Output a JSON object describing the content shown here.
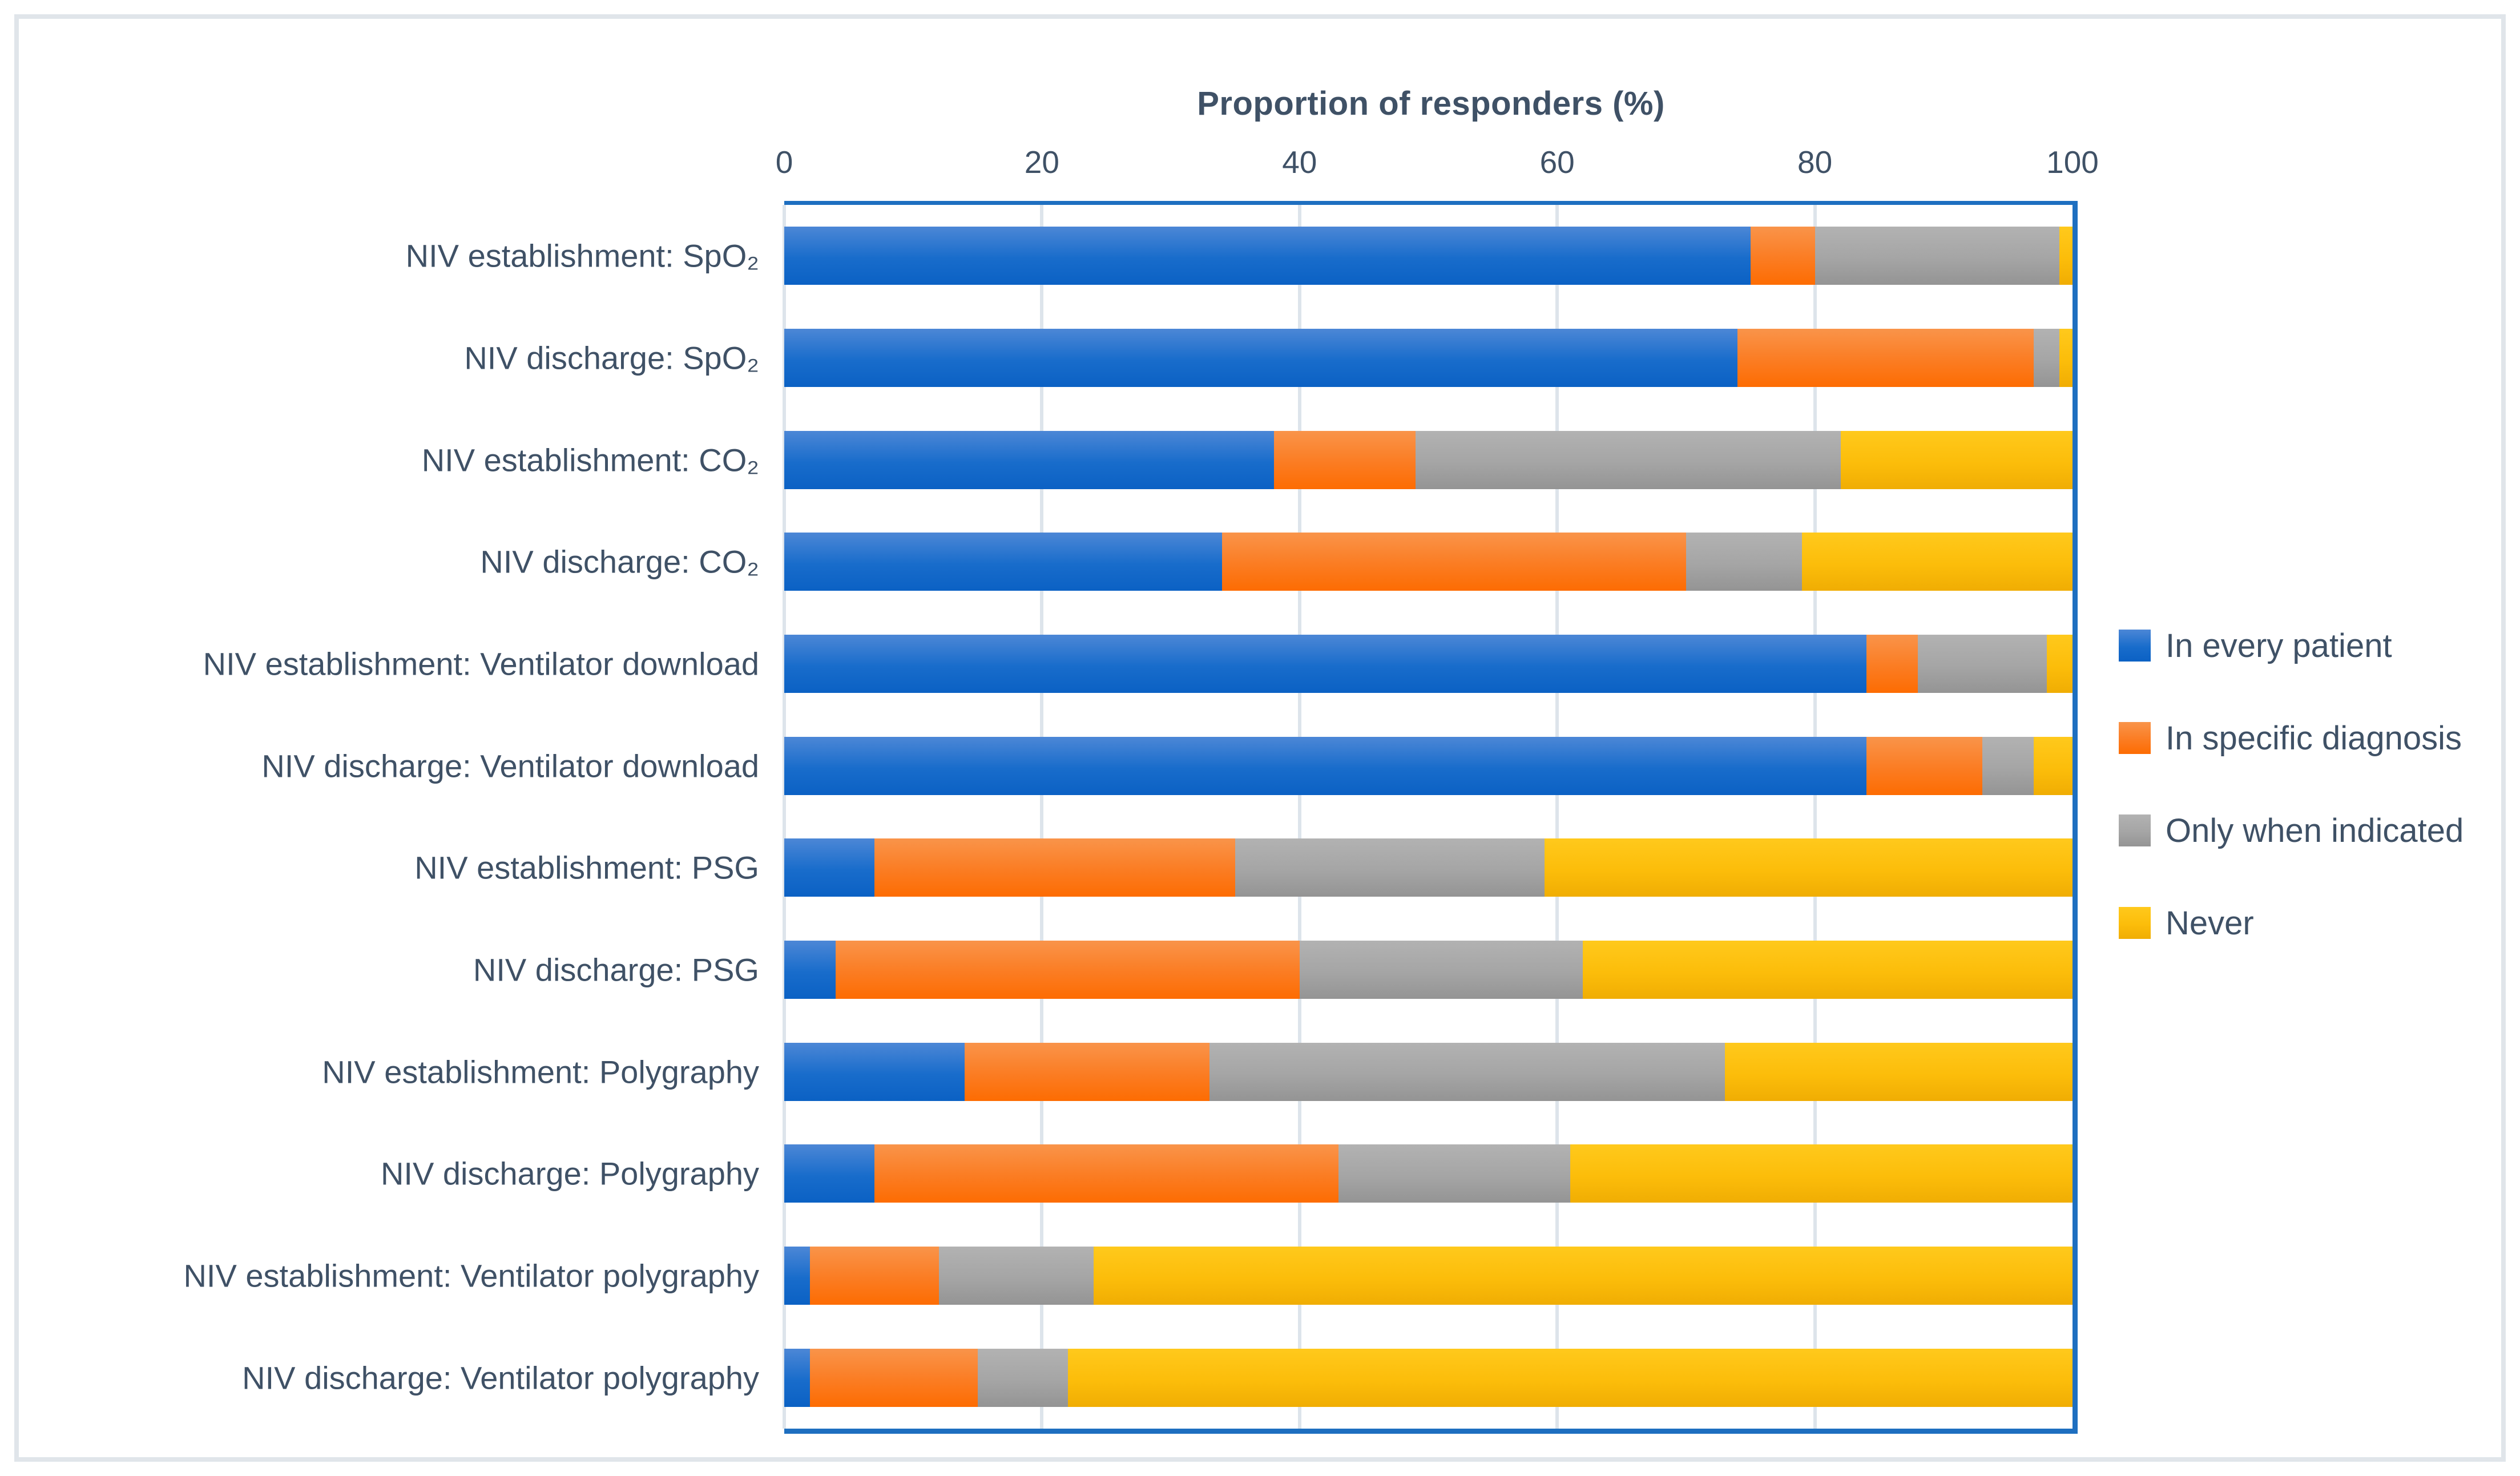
{
  "figure": {
    "background": "#ffffff",
    "border_color": "#e0e5ea"
  },
  "chart_data": {
    "type": "bar",
    "orientation": "horizontal",
    "stacked": true,
    "title": "Proportion of responders (%)",
    "x_axis": {
      "position": "top",
      "range": [
        0,
        100
      ],
      "ticks": [
        0,
        20,
        40,
        60,
        80,
        100
      ],
      "gridlines": "vertical, every 20"
    },
    "legend_position": "right",
    "categories": [
      "NIV establishment: SpO₂",
      "NIV discharge: SpO₂",
      "NIV establishment: CO₂",
      "NIV discharge: CO₂",
      "NIV establishment: Ventilator download",
      "NIV discharge: Ventilator download",
      "NIV establishment: PSG",
      "NIV discharge: PSG",
      "NIV establishment: Polygraphy",
      "NIV discharge: Polygraphy",
      "NIV establishment: Ventilator polygraphy",
      "NIV discharge: Ventilator polygraphy"
    ],
    "series": [
      {
        "name": "In every patient",
        "color": "#1467c8",
        "gradient": [
          "#4c87d6",
          "#0b61c4"
        ],
        "values": [
          75,
          74,
          38,
          34,
          84,
          84,
          7,
          4,
          14,
          7,
          2,
          2
        ]
      },
      {
        "name": "In specific diagnosis",
        "color": "#fb7c22",
        "gradient": [
          "#f9944a",
          "#fd6c02"
        ],
        "values": [
          5,
          23,
          11,
          36,
          4,
          9,
          28,
          36,
          19,
          36,
          10,
          13
        ]
      },
      {
        "name": "Only when indicated",
        "color": "#a5a5a5",
        "gradient": [
          "#b2b2b2",
          "#949494"
        ],
        "values": [
          19,
          2,
          33,
          9,
          10,
          4,
          24,
          22,
          40,
          18,
          12,
          7
        ]
      },
      {
        "name": "Never",
        "color": "#fcbd0a",
        "gradient": [
          "#ffc91c",
          "#f0ad03"
        ],
        "values": [
          1,
          1,
          18,
          21,
          2,
          3,
          41,
          38,
          27,
          39,
          76,
          78
        ]
      }
    ],
    "colors": {
      "axis_text": "#3f5166",
      "gridline": "#dde4eb",
      "plot_border": "#1e6fc0"
    }
  }
}
